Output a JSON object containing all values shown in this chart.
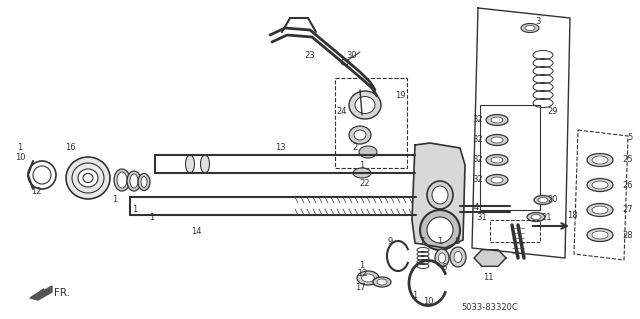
{
  "bg_color": "#ffffff",
  "diagram_color": "#333333",
  "part_code": "5033-83320C",
  "figsize": [
    6.4,
    3.19
  ],
  "dpi": 100
}
